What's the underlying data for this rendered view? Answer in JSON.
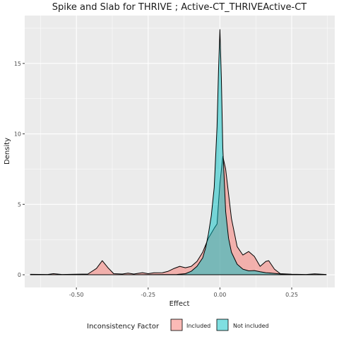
{
  "chart_data": {
    "type": "area",
    "title": "Spike and Slab for THRIVE ; Active-CT_THRIVEActive-CT",
    "xlabel": "Effect",
    "ylabel": "Density",
    "xlim": [
      -0.68,
      0.4
    ],
    "ylim": [
      -0.9,
      18.4
    ],
    "x_ticks": [
      -0.5,
      -0.25,
      0.0,
      0.25
    ],
    "x_tick_labels": [
      "-0.50",
      "-0.25",
      "0.00",
      "0.25"
    ],
    "y_ticks": [
      0,
      5,
      10,
      15
    ],
    "y_tick_labels": [
      "0",
      "5",
      "10",
      "15"
    ],
    "grid": true,
    "legend": {
      "title": "Inconsistency Factor",
      "placement": "bottom"
    },
    "series": [
      {
        "name": "Included",
        "color": "#f8766d",
        "points": [
          [
            -0.66,
            0.03
          ],
          [
            -0.6,
            0.02
          ],
          [
            -0.58,
            0.08
          ],
          [
            -0.55,
            0.02
          ],
          [
            -0.5,
            0.04
          ],
          [
            -0.46,
            0.05
          ],
          [
            -0.43,
            0.45
          ],
          [
            -0.41,
            1.0
          ],
          [
            -0.39,
            0.5
          ],
          [
            -0.37,
            0.08
          ],
          [
            -0.34,
            0.05
          ],
          [
            -0.32,
            0.12
          ],
          [
            -0.3,
            0.05
          ],
          [
            -0.27,
            0.15
          ],
          [
            -0.25,
            0.08
          ],
          [
            -0.23,
            0.14
          ],
          [
            -0.2,
            0.15
          ],
          [
            -0.18,
            0.25
          ],
          [
            -0.16,
            0.45
          ],
          [
            -0.14,
            0.6
          ],
          [
            -0.12,
            0.5
          ],
          [
            -0.1,
            0.6
          ],
          [
            -0.08,
            0.95
          ],
          [
            -0.06,
            1.6
          ],
          [
            -0.04,
            2.6
          ],
          [
            -0.02,
            3.3
          ],
          [
            -0.01,
            3.6
          ],
          [
            0.0,
            6.5
          ],
          [
            0.01,
            8.4
          ],
          [
            0.02,
            7.5
          ],
          [
            0.04,
            4.0
          ],
          [
            0.06,
            2.0
          ],
          [
            0.08,
            1.4
          ],
          [
            0.1,
            1.65
          ],
          [
            0.12,
            1.3
          ],
          [
            0.14,
            0.6
          ],
          [
            0.16,
            0.95
          ],
          [
            0.17,
            1.0
          ],
          [
            0.19,
            0.4
          ],
          [
            0.21,
            0.08
          ],
          [
            0.25,
            0.04
          ],
          [
            0.3,
            0.02
          ],
          [
            0.33,
            0.06
          ],
          [
            0.37,
            0.02
          ]
        ]
      },
      {
        "name": "Not included",
        "color": "#00bfc4",
        "points": [
          [
            -0.66,
            0.0
          ],
          [
            -0.3,
            0.0
          ],
          [
            -0.15,
            0.02
          ],
          [
            -0.12,
            0.08
          ],
          [
            -0.1,
            0.25
          ],
          [
            -0.08,
            0.6
          ],
          [
            -0.06,
            1.2
          ],
          [
            -0.05,
            1.9
          ],
          [
            -0.04,
            2.9
          ],
          [
            -0.03,
            4.2
          ],
          [
            -0.02,
            6.2
          ],
          [
            -0.01,
            10.5
          ],
          [
            -0.005,
            14.5
          ],
          [
            0.0,
            17.4
          ],
          [
            0.005,
            14.0
          ],
          [
            0.01,
            9.0
          ],
          [
            0.02,
            4.5
          ],
          [
            0.03,
            2.6
          ],
          [
            0.04,
            1.6
          ],
          [
            0.06,
            0.75
          ],
          [
            0.08,
            0.4
          ],
          [
            0.1,
            0.28
          ],
          [
            0.12,
            0.3
          ],
          [
            0.14,
            0.22
          ],
          [
            0.16,
            0.15
          ],
          [
            0.18,
            0.12
          ],
          [
            0.2,
            0.08
          ],
          [
            0.22,
            0.04
          ],
          [
            0.25,
            0.0
          ],
          [
            0.37,
            0.0
          ]
        ]
      }
    ]
  }
}
